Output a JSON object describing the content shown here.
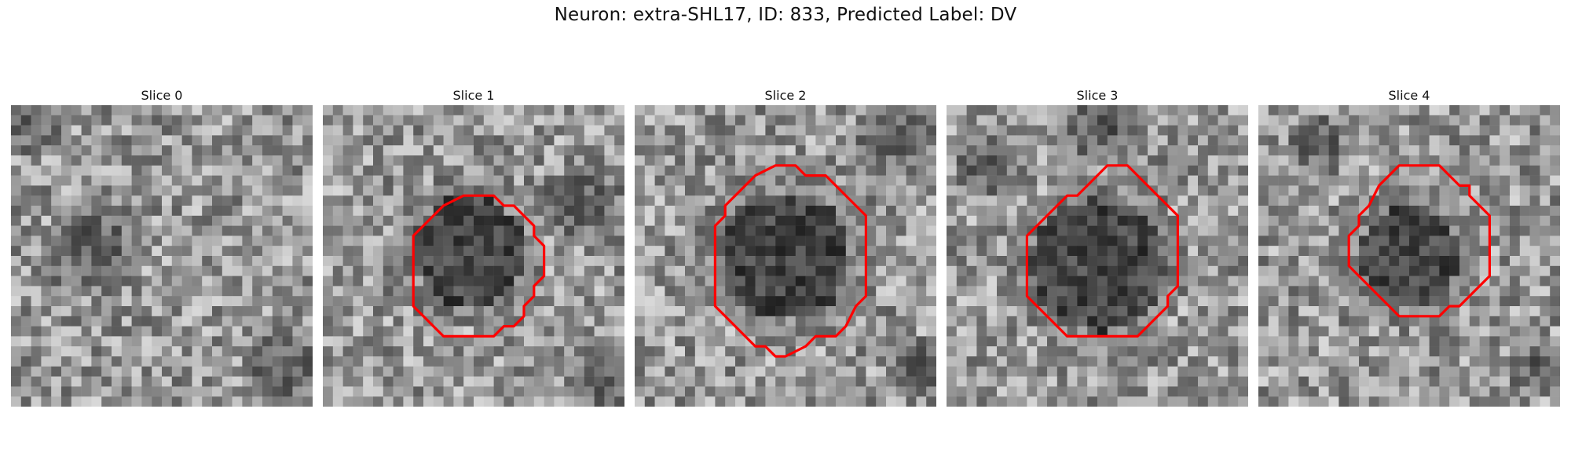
{
  "figure": {
    "title": "Neuron: extra-SHL17, ID: 833, Predicted Label: DV",
    "outline_color": "#ff0000"
  },
  "slices": [
    {
      "title": "Slice 0",
      "has_outline": false
    },
    {
      "title": "Slice 1",
      "has_outline": true
    },
    {
      "title": "Slice 2",
      "has_outline": true
    },
    {
      "title": "Slice 3",
      "has_outline": true
    },
    {
      "title": "Slice 4",
      "has_outline": true
    }
  ]
}
